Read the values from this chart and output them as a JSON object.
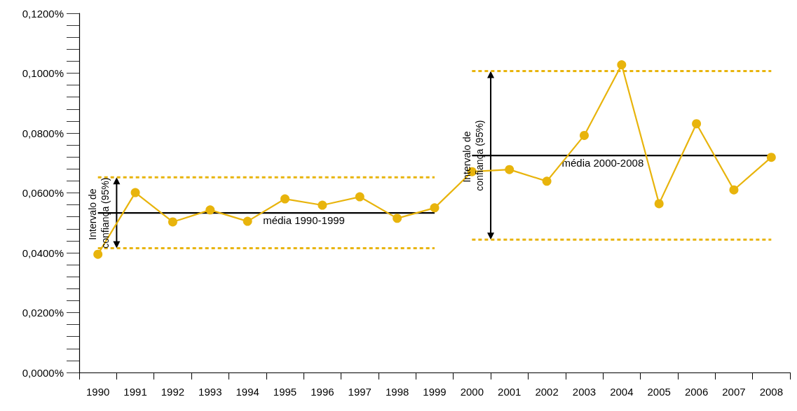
{
  "chart_data": {
    "type": "line",
    "categories": [
      "1990",
      "1991",
      "1992",
      "1993",
      "1994",
      "1995",
      "1996",
      "1997",
      "1998",
      "1999",
      "2000",
      "2001",
      "2002",
      "2003",
      "2004",
      "2005",
      "2006",
      "2007",
      "2008"
    ],
    "series": [
      {
        "color": "#e8b40c",
        "marker": "circle",
        "line_style": "solid",
        "values": [
          0.0395,
          0.0601,
          0.0503,
          0.0543,
          0.0505,
          0.058,
          0.0559,
          0.0587,
          0.0515,
          0.055,
          0.0671,
          0.0678,
          0.0639,
          0.0792,
          0.1028,
          0.0564,
          0.0831,
          0.061,
          0.0719
        ]
      },
      {
        "name": "média 1990-1999",
        "color": "#000000",
        "marker": "none",
        "line_style": "solid",
        "values": [
          0.0533,
          0.0533,
          0.0533,
          0.0533,
          0.0533,
          0.0533,
          0.0533,
          0.0533,
          0.0533,
          0.0533,
          null,
          null,
          null,
          null,
          null,
          null,
          null,
          null,
          null
        ]
      },
      {
        "name": "média 2000-2008",
        "color": "#000000",
        "marker": "none",
        "line_style": "solid",
        "values": [
          null,
          null,
          null,
          null,
          null,
          null,
          null,
          null,
          null,
          null,
          0.0725,
          0.0725,
          0.0725,
          0.0725,
          0.0725,
          0.0725,
          0.0725,
          0.0725,
          0.0725
        ]
      },
      {
        "color": "#e8b40c",
        "marker": "none",
        "line_style": "dashed",
        "values": [
          0.0652,
          0.0652,
          0.0652,
          0.0652,
          0.0652,
          0.0652,
          0.0652,
          0.0652,
          0.0652,
          0.0652,
          null,
          null,
          null,
          null,
          null,
          null,
          null,
          null,
          null
        ]
      },
      {
        "color": "#e8b40c",
        "marker": "none",
        "line_style": "dashed",
        "values": [
          0.0415,
          0.0415,
          0.0415,
          0.0415,
          0.0415,
          0.0415,
          0.0415,
          0.0415,
          0.0415,
          0.0415,
          null,
          null,
          null,
          null,
          null,
          null,
          null,
          null,
          null
        ]
      },
      {
        "color": "#e8b40c",
        "marker": "none",
        "line_style": "dashed",
        "values": [
          null,
          null,
          null,
          null,
          null,
          null,
          null,
          null,
          null,
          null,
          0.1007,
          0.1007,
          0.1007,
          0.1007,
          0.1007,
          0.1007,
          0.1007,
          0.1007,
          0.1007
        ]
      },
      {
        "color": "#e8b40c",
        "marker": "none",
        "line_style": "dashed",
        "values": [
          null,
          null,
          null,
          null,
          null,
          null,
          null,
          null,
          null,
          null,
          0.0444,
          0.0444,
          0.0444,
          0.0444,
          0.0444,
          0.0444,
          0.0444,
          0.0444,
          0.0444
        ]
      }
    ],
    "ylim": [
      0,
      0.12
    ],
    "yticks": [
      {
        "value": 0,
        "label": "0,0000%"
      },
      {
        "value": 0.02,
        "label": "0,0200%"
      },
      {
        "value": 0.04,
        "label": "0,0400%"
      },
      {
        "value": 0.06,
        "label": "0,0600%"
      },
      {
        "value": 0.08,
        "label": "0,0800%"
      },
      {
        "value": 0.1,
        "label": "0,1000%"
      },
      {
        "value": 0.12,
        "label": "0,1200%"
      }
    ],
    "grid": false,
    "legend": false,
    "annotations": [
      {
        "text": "Intervalo de confiança (95%)",
        "x": "1990",
        "y": 0.0533
      },
      {
        "text": "Intervalo de confiança (95%)",
        "x": "2000",
        "y": 0.0725
      }
    ]
  }
}
